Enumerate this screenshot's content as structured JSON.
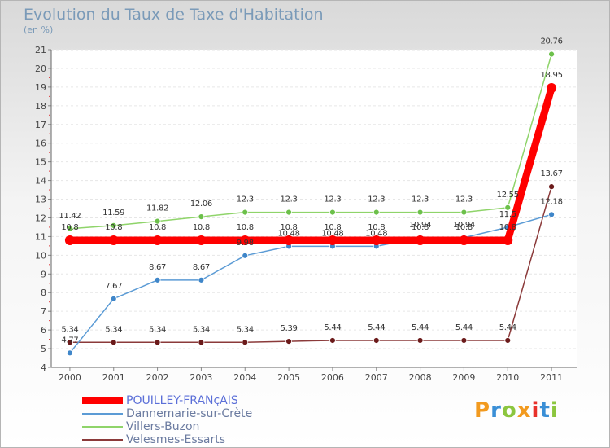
{
  "title": "Evolution du Taux de Taxe d'Habitation",
  "subtitle": "(en %)",
  "logo": {
    "text": "Proxiti",
    "colors": [
      "#f29a1f",
      "#3a8fd6",
      "#8cc63f",
      "#f29a1f",
      "#e8312a",
      "#3a8fd6",
      "#8cc63f"
    ]
  },
  "chart_data": {
    "type": "line",
    "x": [
      "2000",
      "2001",
      "2002",
      "2003",
      "2004",
      "2005",
      "2006",
      "2007",
      "2008",
      "2009",
      "2010",
      "2011"
    ],
    "ylim": [
      4,
      21
    ],
    "yticks": [
      "4",
      "5",
      "6",
      "7",
      "8",
      "9",
      "10",
      "11",
      "12",
      "13",
      "14",
      "15",
      "16",
      "17",
      "18",
      "19",
      "20",
      "21"
    ],
    "grid": "horizontal",
    "legend_position": "bottom-left",
    "series": [
      {
        "name": "POUILLEY-FRANçAIS",
        "color": "#ff0000",
        "marker": "#ff0000",
        "values": [
          10.8,
          10.8,
          10.8,
          10.8,
          10.8,
          10.8,
          10.8,
          10.8,
          10.8,
          10.8,
          10.8,
          18.95
        ],
        "labels": [
          "10.8",
          "10.8",
          "10.8",
          "10.8",
          "10.8",
          "10.8",
          "10.8",
          "10.8",
          "10.8",
          "10.8",
          "10.8",
          "18.95"
        ]
      },
      {
        "name": "Dannemarie-sur-Crète",
        "color": "#5b9bd5",
        "marker": "#3f86c9",
        "values": [
          4.77,
          7.67,
          8.67,
          8.67,
          9.98,
          10.48,
          10.48,
          10.48,
          10.94,
          10.94,
          11.5,
          12.18
        ],
        "labels": [
          "4.77",
          "7.67",
          "8.67",
          "8.67",
          "9.98",
          "10.48",
          "10.48",
          "10.48",
          "10.94",
          "10.94",
          "11.5",
          "12.18"
        ]
      },
      {
        "name": "Villers-Buzon",
        "color": "#8fd46a",
        "marker": "#6cc04a",
        "values": [
          11.42,
          11.59,
          11.82,
          12.06,
          12.3,
          12.3,
          12.3,
          12.3,
          12.3,
          12.3,
          12.55,
          20.76
        ],
        "labels": [
          "11.42",
          "11.59",
          "11.82",
          "12.06",
          "12.3",
          "12.3",
          "12.3",
          "12.3",
          "12.3",
          "12.3",
          "12.55",
          "20.76"
        ]
      },
      {
        "name": "Velesmes-Essarts",
        "color": "#8b3a3a",
        "marker": "#6b1a1a",
        "values": [
          5.34,
          5.34,
          5.34,
          5.34,
          5.34,
          5.39,
          5.44,
          5.44,
          5.44,
          5.44,
          5.44,
          13.67
        ],
        "labels": [
          "5.34",
          "5.34",
          "5.34",
          "5.34",
          "5.34",
          "5.39",
          "5.44",
          "5.44",
          "5.44",
          "5.44",
          "5.44",
          "13.67"
        ]
      }
    ]
  }
}
